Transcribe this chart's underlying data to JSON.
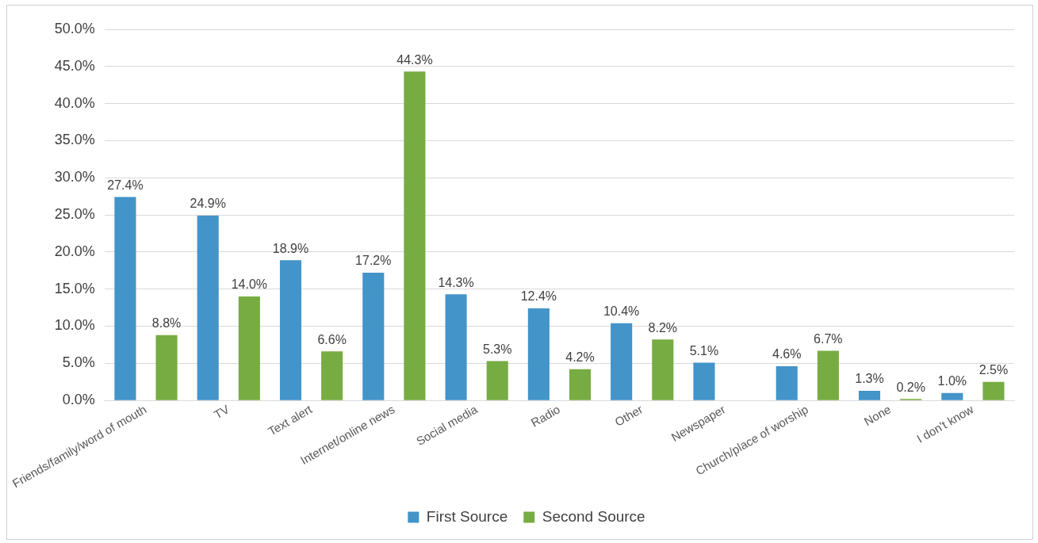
{
  "chart_data": {
    "type": "bar",
    "categories": [
      "Friends/family/word of mouth",
      "TV",
      "Text alert",
      "Internet/online news",
      "Social media",
      "Radio",
      "Other",
      "Newspaper",
      "Church/place of worship",
      "None",
      "I don't know"
    ],
    "series": [
      {
        "name": "First Source",
        "color": "#4394c8",
        "values": [
          27.4,
          24.9,
          18.9,
          17.2,
          14.3,
          12.4,
          10.4,
          5.1,
          4.6,
          1.3,
          1.0
        ],
        "value_labels": [
          "27.4%",
          "24.9%",
          "18.9%",
          "17.2%",
          "14.3%",
          "12.4%",
          "10.4%",
          "5.1%",
          "4.6%",
          "1.3%",
          "1.0%"
        ]
      },
      {
        "name": "Second Source",
        "color": "#77ac43",
        "values": [
          8.8,
          14.0,
          6.6,
          44.3,
          5.3,
          4.2,
          8.2,
          null,
          6.7,
          0.2,
          2.5
        ],
        "value_labels": [
          "8.8%",
          "14.0%",
          "6.6%",
          "44.3%",
          "5.3%",
          "4.2%",
          "8.2%",
          null,
          "6.7%",
          "0.2%",
          "2.5%"
        ]
      }
    ],
    "ylim": [
      0,
      50
    ],
    "yticks": [
      {
        "value": 0,
        "label": "0.0%"
      },
      {
        "value": 5,
        "label": "5.0%"
      },
      {
        "value": 10,
        "label": "10.0%"
      },
      {
        "value": 15,
        "label": "15.0%"
      },
      {
        "value": 20,
        "label": "20.0%"
      },
      {
        "value": 25,
        "label": "25.0%"
      },
      {
        "value": 30,
        "label": "30.0%"
      },
      {
        "value": 35,
        "label": "35.0%"
      },
      {
        "value": 40,
        "label": "40.0%"
      },
      {
        "value": 45,
        "label": "45.0%"
      },
      {
        "value": 50,
        "label": "50.0%"
      }
    ],
    "grid": "y",
    "legend": "bottom"
  }
}
